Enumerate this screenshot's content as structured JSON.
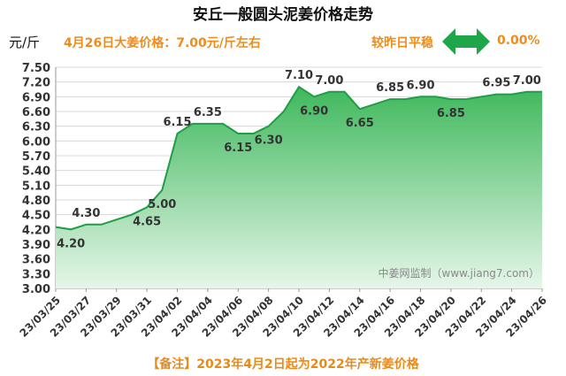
{
  "header": {
    "title": "安丘一般圆头泥姜价格走势",
    "unit": "元/斤",
    "headline": "4月26日大姜价格：7.00元/斤左右",
    "compare_label": "较昨日平稳",
    "compare_value": "0.00%"
  },
  "watermark": "中姜网监制（www.jiang7.com）",
  "footnote": "【备注】2023年4月2日起为2022年产新姜价格",
  "colors": {
    "accent": "#f08c1a",
    "line": "#1f9e47",
    "fill_top": "#4fbf67",
    "fill_bottom": "#dff3e2",
    "arrow": "#20a64a"
  },
  "chart_data": {
    "type": "area",
    "ylim": [
      3.0,
      7.5
    ],
    "y_ticks": [
      "3.00",
      "3.30",
      "3.60",
      "3.90",
      "4.20",
      "4.50",
      "4.80",
      "5.10",
      "5.40",
      "5.70",
      "6.00",
      "6.30",
      "6.60",
      "6.90",
      "7.20",
      "7.50"
    ],
    "grid": true,
    "x": [
      "23/03/25",
      "23/03/26",
      "23/03/27",
      "23/03/28",
      "23/03/29",
      "23/03/30",
      "23/03/31",
      "23/04/01",
      "23/04/02",
      "23/04/03",
      "23/04/04",
      "23/04/05",
      "23/04/06",
      "23/04/07",
      "23/04/08",
      "23/04/09",
      "23/04/10",
      "23/04/11",
      "23/04/12",
      "23/04/13",
      "23/04/14",
      "23/04/15",
      "23/04/16",
      "23/04/17",
      "23/04/18",
      "23/04/19",
      "23/04/20",
      "23/04/21",
      "23/04/22",
      "23/04/23",
      "23/04/24",
      "23/04/25",
      "23/04/26"
    ],
    "x_tick_labels": [
      "23/03/25",
      "23/03/27",
      "23/03/29",
      "23/03/31",
      "23/04/02",
      "23/04/04",
      "23/04/06",
      "23/04/08",
      "23/04/10",
      "23/04/12",
      "23/04/14",
      "23/04/16",
      "23/04/18",
      "23/04/20",
      "23/04/22",
      "23/04/24",
      "23/04/26"
    ],
    "values": [
      4.25,
      4.2,
      4.3,
      4.3,
      4.4,
      4.5,
      4.65,
      5.0,
      6.15,
      6.35,
      6.35,
      6.35,
      6.15,
      6.15,
      6.3,
      6.6,
      7.1,
      6.9,
      7.0,
      7.0,
      6.65,
      6.75,
      6.85,
      6.85,
      6.9,
      6.9,
      6.85,
      6.85,
      6.9,
      6.95,
      6.95,
      7.0,
      7.0
    ],
    "data_labels": [
      {
        "i": 1,
        "text": "4.20",
        "pos": "below"
      },
      {
        "i": 2,
        "text": "4.30",
        "pos": "above"
      },
      {
        "i": 6,
        "text": "4.65",
        "pos": "below"
      },
      {
        "i": 7,
        "text": "5.00",
        "pos": "below"
      },
      {
        "i": 8,
        "text": "6.15",
        "pos": "above"
      },
      {
        "i": 10,
        "text": "6.35",
        "pos": "above"
      },
      {
        "i": 12,
        "text": "6.15",
        "pos": "below"
      },
      {
        "i": 14,
        "text": "6.30",
        "pos": "below"
      },
      {
        "i": 16,
        "text": "7.10",
        "pos": "above"
      },
      {
        "i": 17,
        "text": "6.90",
        "pos": "below"
      },
      {
        "i": 18,
        "text": "7.00",
        "pos": "above"
      },
      {
        "i": 20,
        "text": "6.65",
        "pos": "below"
      },
      {
        "i": 22,
        "text": "6.85",
        "pos": "above"
      },
      {
        "i": 24,
        "text": "6.90",
        "pos": "above"
      },
      {
        "i": 26,
        "text": "6.85",
        "pos": "below"
      },
      {
        "i": 29,
        "text": "6.95",
        "pos": "above"
      },
      {
        "i": 31,
        "text": "7.00",
        "pos": "above"
      }
    ]
  }
}
